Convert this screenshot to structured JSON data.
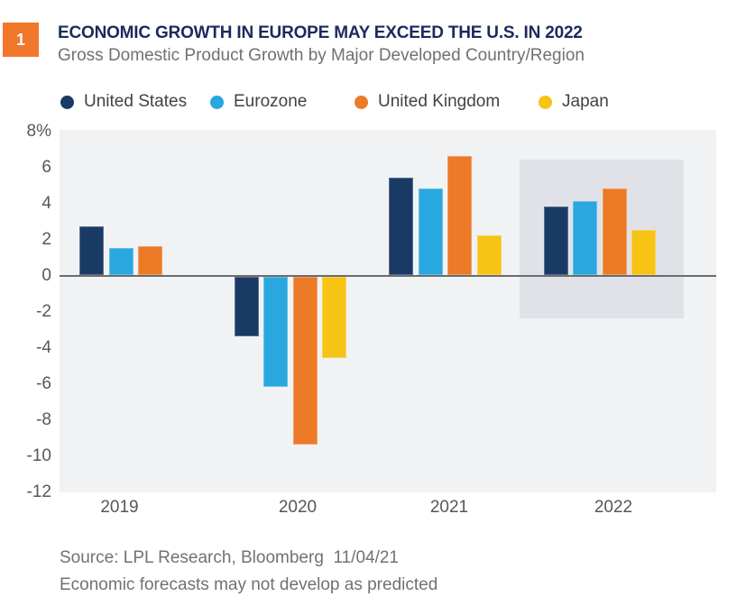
{
  "figure_badge": "1",
  "header": {
    "title": "ECONOMIC GROWTH IN EUROPE MAY EXCEED THE U.S. IN 2022",
    "subtitle": "Gross Domestic Product Growth by Major Developed Country/Region"
  },
  "colors": {
    "badge_orange": "#F1772B",
    "title_navy": "#1B2A5E",
    "plot_background": "#F1F2F4",
    "highlight_band": "#E1E2E7",
    "zero_line": "#6A6C6F",
    "axis_text": "#54575C"
  },
  "legend": [
    {
      "label": "United States",
      "color": "#1A3A66"
    },
    {
      "label": "Eurozone",
      "color": "#29A8DF"
    },
    {
      "label": "United Kingdom",
      "color": "#EC7A26"
    },
    {
      "label": "Japan",
      "color": "#F7C315"
    }
  ],
  "chart_data": {
    "type": "bar",
    "title": "ECONOMIC GROWTH IN EUROPE MAY EXCEED THE U.S. IN 2022",
    "subtitle": "Gross Domestic Product Growth by Major Developed Country/Region",
    "categories": [
      "2019",
      "2020",
      "2021",
      "2022"
    ],
    "series": [
      {
        "name": "United States",
        "color": "#1A3A66",
        "values": [
          2.7,
          -3.3,
          5.4,
          3.8
        ]
      },
      {
        "name": "Eurozone",
        "color": "#29A8DF",
        "values": [
          1.5,
          -6.1,
          4.8,
          4.1
        ]
      },
      {
        "name": "United Kingdom",
        "color": "#EC7A26",
        "values": [
          1.6,
          -9.3,
          6.6,
          4.8
        ]
      },
      {
        "name": "Japan",
        "color": "#F7C315",
        "values": [
          0,
          -4.5,
          2.2,
          2.5
        ]
      }
    ],
    "unit": "percent",
    "yticks": [
      {
        "label": "8%",
        "value": 8
      },
      {
        "label": "6",
        "value": 6
      },
      {
        "label": "4",
        "value": 4
      },
      {
        "label": "2",
        "value": 2
      },
      {
        "label": "0",
        "value": 0
      },
      {
        "label": "-2",
        "value": -2
      },
      {
        "label": "-4",
        "value": -4
      },
      {
        "label": "-6",
        "value": -6
      },
      {
        "label": "-8",
        "value": -8
      },
      {
        "label": "-10",
        "value": -10
      },
      {
        "label": "-12",
        "value": -12
      }
    ],
    "ylim": [
      -12,
      8.1
    ],
    "grid": false,
    "legend_position": "top",
    "highlight": {
      "category": "2022",
      "value_top": 6.45,
      "value_bottom": -2.35
    }
  },
  "footer": {
    "source": "Source: LPL Research, Bloomberg  11/04/21",
    "disclaimer": "Economic forecasts may not develop as predicted"
  }
}
